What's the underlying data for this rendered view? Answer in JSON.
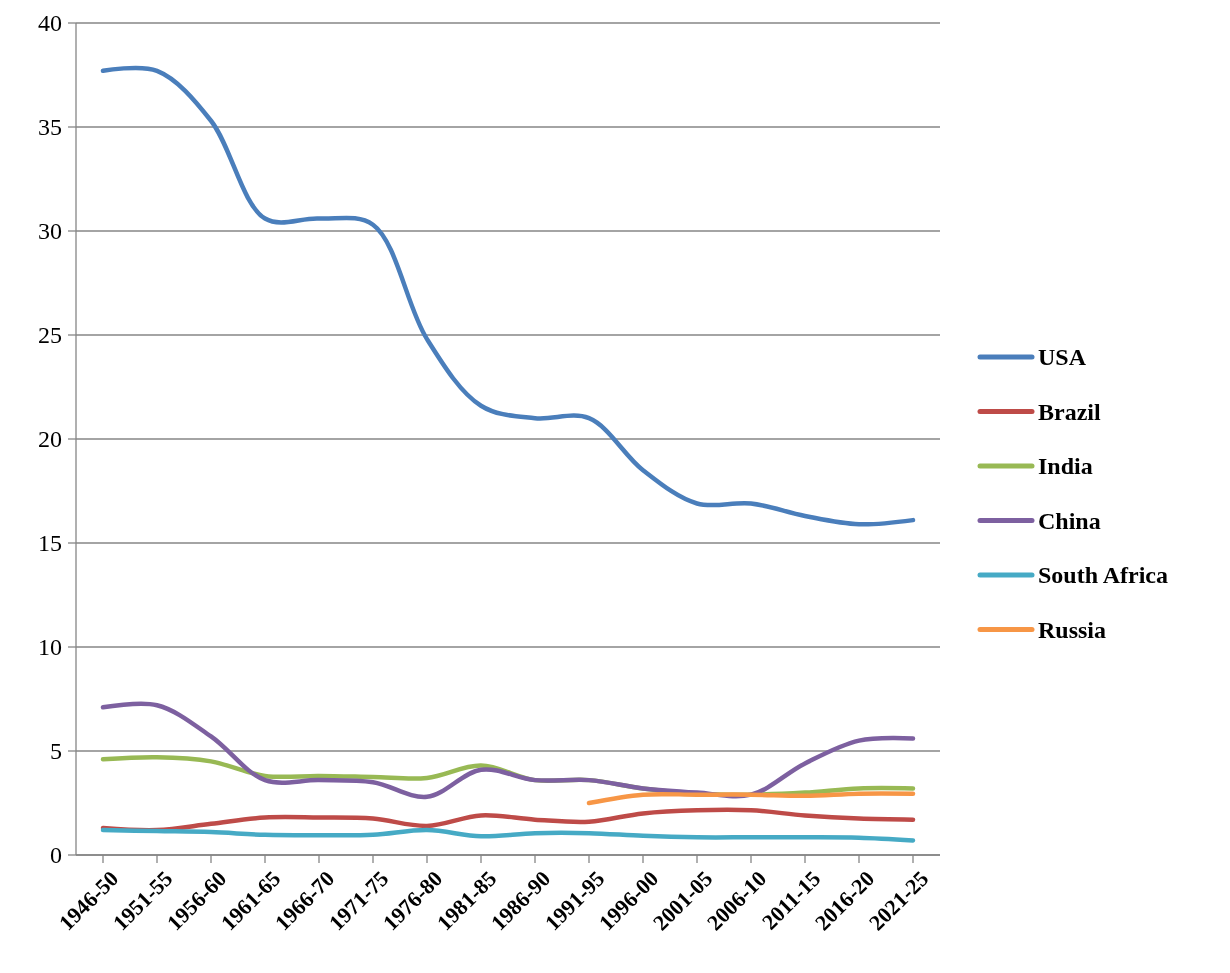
{
  "chart_data": {
    "type": "line",
    "categories": [
      "1946-50",
      "1951-55",
      "1956-60",
      "1961-65",
      "1966-70",
      "1971-75",
      "1976-80",
      "1981-85",
      "1986-90",
      "1991-95",
      "1996-00",
      "2001-05",
      "2006-10",
      "2011-15",
      "2016-20",
      "2021-25"
    ],
    "series": [
      {
        "name": "USA",
        "color": "#4a7ebb",
        "values": [
          37.7,
          37.7,
          35.3,
          30.6,
          30.6,
          30.3,
          24.8,
          21.6,
          21.0,
          21.0,
          18.5,
          16.9,
          16.9,
          16.3,
          15.9,
          16.1
        ]
      },
      {
        "name": "Brazil",
        "color": "#be4b48",
        "values": [
          1.3,
          1.2,
          1.5,
          1.8,
          1.8,
          1.75,
          1.4,
          1.9,
          1.7,
          1.6,
          2.0,
          2.15,
          2.15,
          1.9,
          1.75,
          1.7
        ]
      },
      {
        "name": "India",
        "color": "#98b954",
        "values": [
          4.6,
          4.7,
          4.5,
          3.8,
          3.8,
          3.75,
          3.7,
          4.3,
          3.6,
          3.6,
          3.2,
          2.95,
          2.9,
          3.0,
          3.2,
          3.2
        ]
      },
      {
        "name": "China",
        "color": "#7d60a0",
        "values": [
          7.1,
          7.2,
          5.7,
          3.6,
          3.6,
          3.5,
          2.8,
          4.1,
          3.6,
          3.6,
          3.2,
          3.0,
          2.9,
          4.4,
          5.5,
          5.6
        ]
      },
      {
        "name": "South Africa",
        "color": "#46aac5",
        "values": [
          1.2,
          1.15,
          1.1,
          0.97,
          0.95,
          0.97,
          1.2,
          0.9,
          1.05,
          1.05,
          0.92,
          0.85,
          0.85,
          0.85,
          0.83,
          0.7
        ]
      },
      {
        "name": "Russia",
        "color": "#f79646",
        "values": [
          null,
          null,
          null,
          null,
          null,
          null,
          null,
          null,
          null,
          2.5,
          2.9,
          2.9,
          2.9,
          2.85,
          2.95,
          2.95
        ]
      }
    ],
    "ylim": [
      0,
      40
    ],
    "yticks": [
      0,
      5,
      10,
      15,
      20,
      25,
      30,
      35,
      40
    ],
    "grid": "y",
    "legend": "right",
    "marker": "none",
    "line_style": "solid"
  }
}
